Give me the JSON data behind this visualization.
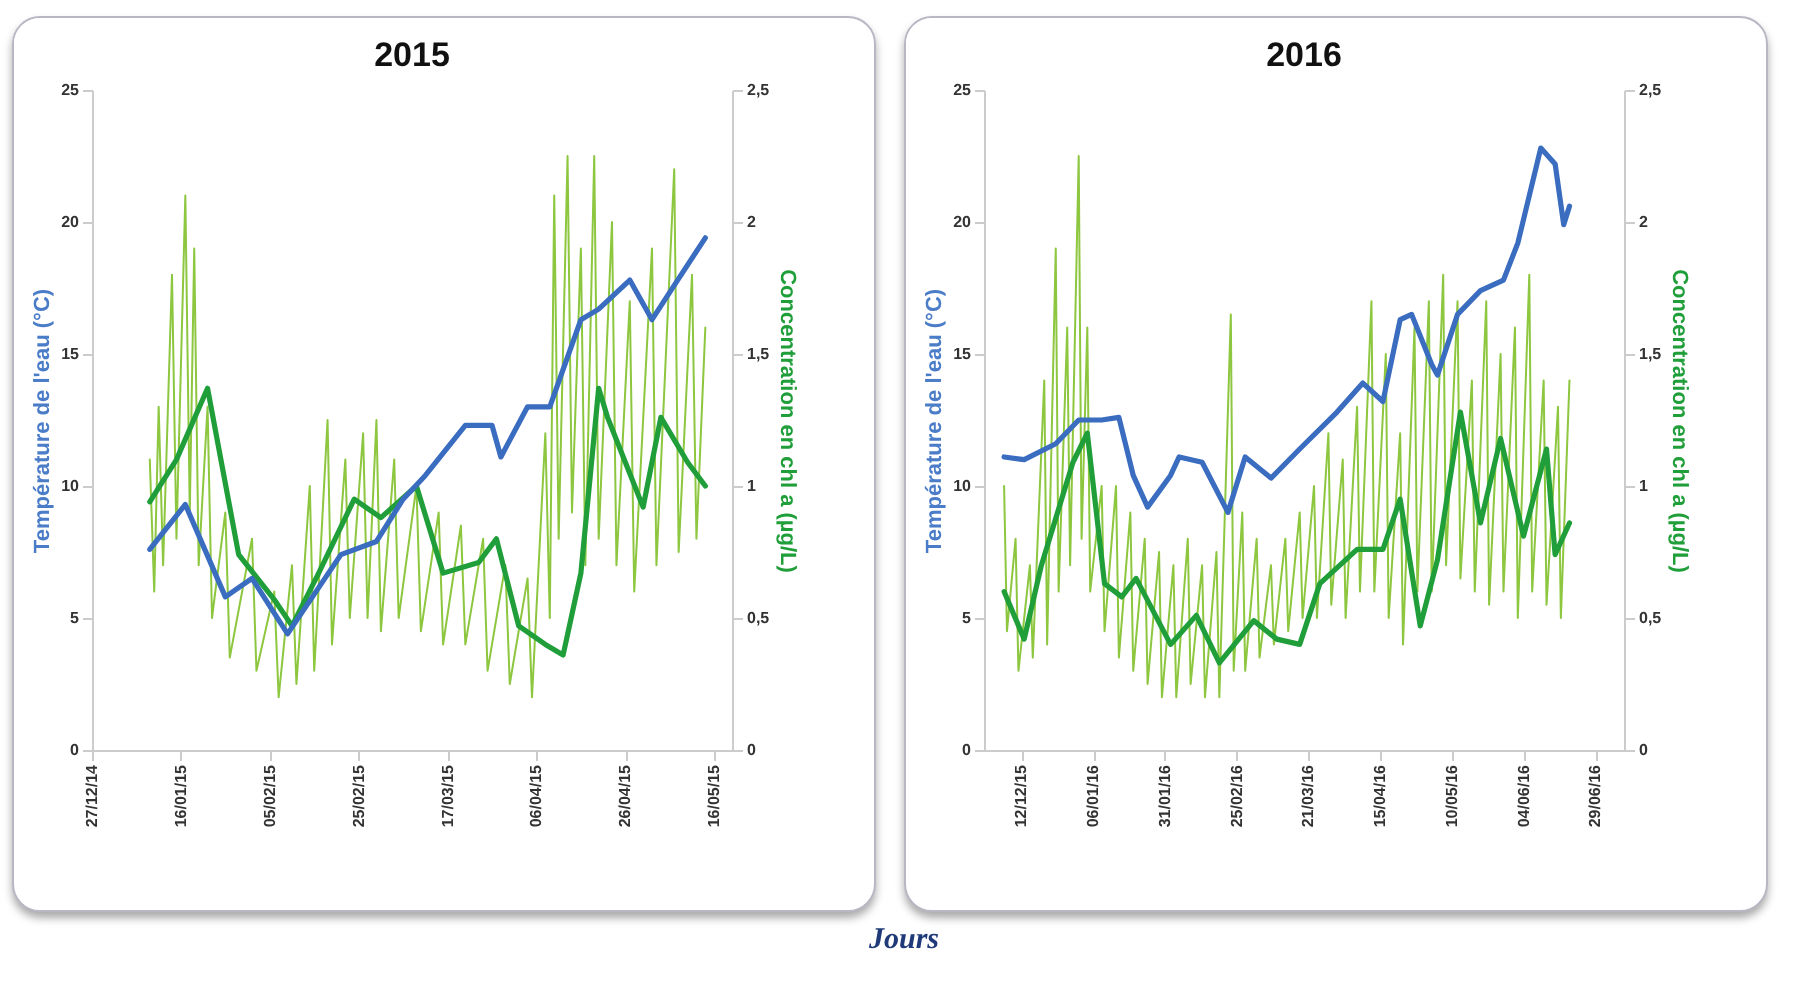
{
  "chart_data": [
    {
      "type": "line",
      "title": "2015",
      "xlabel": "Jours",
      "ylabel": "Température de l'eau (°C)",
      "y2label": "Concentration en chl a (µg/L)",
      "xlim": [
        "2014-12-27",
        "2015-05-20"
      ],
      "xticks": [
        {
          "value": "2014-12-27",
          "label": "27/12/14"
        },
        {
          "value": "2015-01-16",
          "label": "16/01/15"
        },
        {
          "value": "2015-02-05",
          "label": "05/02/15"
        },
        {
          "value": "2015-02-25",
          "label": "25/02/15"
        },
        {
          "value": "2015-03-17",
          "label": "17/03/15"
        },
        {
          "value": "2015-04-06",
          "label": "06/04/15"
        },
        {
          "value": "2015-04-26",
          "label": "26/04/15"
        },
        {
          "value": "2015-05-16",
          "label": "16/05/15"
        }
      ],
      "ylim": [
        0,
        25
      ],
      "yticks": [
        0,
        5,
        10,
        15,
        20,
        25
      ],
      "y2lim": [
        0,
        2.5
      ],
      "y2ticks": [
        0,
        {
          "value": 0.5,
          "label": "0,5"
        },
        1,
        {
          "value": 1.5,
          "label": "1,5"
        },
        2,
        {
          "value": 2.5,
          "label": "2,5"
        }
      ],
      "grid": false,
      "series": [
        {
          "axis": "y2",
          "color": "#8dc63f",
          "x": [
            "2015-01-09",
            "2015-01-10",
            "2015-01-11",
            "2015-01-12",
            "2015-01-14",
            "2015-01-15",
            "2015-01-17",
            "2015-01-18",
            "2015-01-19",
            "2015-01-20",
            "2015-01-22",
            "2015-01-23",
            "2015-01-26",
            "2015-01-27",
            "2015-02-01",
            "2015-02-02",
            "2015-02-06",
            "2015-02-07",
            "2015-02-10",
            "2015-02-11",
            "2015-02-14",
            "2015-02-15",
            "2015-02-18",
            "2015-02-19",
            "2015-02-22",
            "2015-02-23",
            "2015-02-26",
            "2015-02-27",
            "2015-03-01",
            "2015-03-02",
            "2015-03-05",
            "2015-03-06",
            "2015-03-10",
            "2015-03-11",
            "2015-03-15",
            "2015-03-16",
            "2015-03-20",
            "2015-03-21",
            "2015-03-25",
            "2015-03-26",
            "2015-03-30",
            "2015-03-31",
            "2015-04-04",
            "2015-04-05",
            "2015-04-08",
            "2015-04-09",
            "2015-04-10",
            "2015-04-11",
            "2015-04-13",
            "2015-04-14",
            "2015-04-16",
            "2015-04-17",
            "2015-04-19",
            "2015-04-20",
            "2015-04-23",
            "2015-04-24",
            "2015-04-27",
            "2015-04-28",
            "2015-05-02",
            "2015-05-03",
            "2015-05-07",
            "2015-05-08",
            "2015-05-11",
            "2015-05-12",
            "2015-05-14"
          ],
          "values": [
            1.1,
            0.6,
            1.3,
            0.7,
            1.8,
            0.8,
            2.1,
            0.9,
            1.9,
            0.7,
            1.3,
            0.5,
            0.9,
            0.35,
            0.8,
            0.3,
            0.6,
            0.2,
            0.7,
            0.25,
            1.0,
            0.3,
            1.25,
            0.4,
            1.1,
            0.5,
            1.2,
            0.5,
            1.25,
            0.45,
            1.1,
            0.5,
            1.0,
            0.45,
            0.9,
            0.4,
            0.85,
            0.4,
            0.8,
            0.3,
            0.7,
            0.25,
            0.65,
            0.2,
            1.2,
            0.5,
            2.1,
            0.8,
            2.25,
            0.9,
            1.9,
            0.7,
            2.25,
            0.8,
            2.0,
            0.7,
            1.7,
            0.6,
            1.9,
            0.7,
            2.2,
            0.75,
            1.8,
            0.8,
            1.6
          ]
        },
        {
          "axis": "y2",
          "color": "#1f9e3a",
          "x": [
            "2015-01-09",
            "2015-01-15",
            "2015-01-22",
            "2015-01-29",
            "2015-02-06",
            "2015-02-10",
            "2015-02-16",
            "2015-02-24",
            "2015-03-02",
            "2015-03-10",
            "2015-03-16",
            "2015-03-24",
            "2015-03-28",
            "2015-04-02",
            "2015-04-08",
            "2015-04-12",
            "2015-04-16",
            "2015-04-20",
            "2015-04-22",
            "2015-04-26",
            "2015-04-30",
            "2015-05-04",
            "2015-05-10",
            "2015-05-14"
          ],
          "values": [
            0.94,
            1.1,
            1.37,
            0.74,
            0.57,
            0.47,
            0.67,
            0.95,
            0.88,
            1.0,
            0.67,
            0.71,
            0.8,
            0.47,
            0.4,
            0.36,
            0.67,
            1.37,
            1.26,
            1.09,
            0.92,
            1.26,
            1.09,
            1.0
          ]
        },
        {
          "color": "#3a6cc0",
          "x": [
            "2015-01-09",
            "2015-01-17",
            "2015-01-26",
            "2015-02-01",
            "2015-02-09",
            "2015-02-21",
            "2015-03-01",
            "2015-03-07",
            "2015-03-12",
            "2015-03-21",
            "2015-03-27",
            "2015-03-29",
            "2015-04-04",
            "2015-04-09",
            "2015-04-16",
            "2015-04-20",
            "2015-04-27",
            "2015-05-02",
            "2015-05-07",
            "2015-05-14"
          ],
          "values": [
            7.6,
            9.3,
            5.8,
            6.5,
            4.4,
            7.4,
            7.9,
            9.5,
            10.4,
            12.3,
            12.3,
            11.1,
            13,
            13,
            16.3,
            16.7,
            17.8,
            16.3,
            17.6,
            19.4
          ]
        }
      ]
    },
    {
      "type": "line",
      "title": "2016",
      "ylabel": "Température de l'eau (°C)",
      "y2label": "Concentration en chl a (µg/L)",
      "xlim": [
        "2015-11-29",
        "2016-07-09"
      ],
      "xticks": [
        {
          "value": "2015-12-12",
          "label": "12/12/15"
        },
        {
          "value": "2016-01-06",
          "label": "06/01/16"
        },
        {
          "value": "2016-01-31",
          "label": "31/01/16"
        },
        {
          "value": "2016-02-25",
          "label": "25/02/16"
        },
        {
          "value": "2016-03-21",
          "label": "21/03/16"
        },
        {
          "value": "2016-04-15",
          "label": "15/04/16"
        },
        {
          "value": "2016-05-10",
          "label": "10/05/16"
        },
        {
          "value": "2016-06-04",
          "label": "04/06/16"
        },
        {
          "value": "2016-06-29",
          "label": "29/06/16"
        }
      ],
      "ylim": [
        0,
        25
      ],
      "yticks": [
        0,
        5,
        10,
        15,
        20,
        25
      ],
      "y2lim": [
        0,
        2.5
      ],
      "y2ticks": [
        0,
        {
          "value": 0.5,
          "label": "0,5"
        },
        1,
        {
          "value": 1.5,
          "label": "1,5"
        },
        2,
        {
          "value": 2.5,
          "label": "2,5"
        }
      ],
      "grid": false,
      "series": [
        {
          "axis": "y2",
          "color": "#8dc63f",
          "x": [
            "2015-12-06",
            "2015-12-07",
            "2015-12-10",
            "2015-12-11",
            "2015-12-15",
            "2015-12-16",
            "2015-12-20",
            "2015-12-21",
            "2015-12-24",
            "2015-12-25",
            "2015-12-28",
            "2015-12-29",
            "2016-01-01",
            "2016-01-02",
            "2016-01-04",
            "2016-01-05",
            "2016-01-09",
            "2016-01-10",
            "2016-01-14",
            "2016-01-15",
            "2016-01-19",
            "2016-01-20",
            "2016-01-24",
            "2016-01-25",
            "2016-01-29",
            "2016-01-30",
            "2016-02-03",
            "2016-02-04",
            "2016-02-08",
            "2016-02-09",
            "2016-02-13",
            "2016-02-14",
            "2016-02-18",
            "2016-02-19",
            "2016-02-23",
            "2016-02-24",
            "2016-02-27",
            "2016-02-28",
            "2016-03-03",
            "2016-03-04",
            "2016-03-08",
            "2016-03-09",
            "2016-03-13",
            "2016-03-14",
            "2016-03-18",
            "2016-03-19",
            "2016-03-23",
            "2016-03-24",
            "2016-03-28",
            "2016-03-29",
            "2016-04-02",
            "2016-04-03",
            "2016-04-07",
            "2016-04-08",
            "2016-04-12",
            "2016-04-13",
            "2016-04-17",
            "2016-04-18",
            "2016-04-22",
            "2016-04-23",
            "2016-04-27",
            "2016-04-28",
            "2016-05-02",
            "2016-05-03",
            "2016-05-07",
            "2016-05-08",
            "2016-05-12",
            "2016-05-13",
            "2016-05-17",
            "2016-05-18",
            "2016-05-22",
            "2016-05-23",
            "2016-05-27",
            "2016-05-28",
            "2016-06-01",
            "2016-06-02",
            "2016-06-06",
            "2016-06-07",
            "2016-06-11",
            "2016-06-12",
            "2016-06-16",
            "2016-06-17",
            "2016-06-20"
          ],
          "values": [
            1.0,
            0.45,
            0.8,
            0.3,
            0.7,
            0.35,
            1.4,
            0.4,
            1.9,
            0.6,
            1.6,
            0.7,
            2.25,
            0.8,
            1.6,
            0.6,
            1.0,
            0.45,
            1.0,
            0.35,
            0.9,
            0.3,
            0.8,
            0.25,
            0.75,
            0.2,
            0.7,
            0.2,
            0.8,
            0.25,
            0.7,
            0.2,
            0.75,
            0.2,
            1.65,
            0.3,
            0.9,
            0.3,
            0.8,
            0.35,
            0.7,
            0.4,
            0.8,
            0.45,
            0.9,
            0.5,
            1.0,
            0.5,
            1.2,
            0.55,
            1.1,
            0.5,
            1.3,
            0.6,
            1.7,
            0.6,
            1.5,
            0.5,
            1.2,
            0.4,
            1.6,
            0.6,
            1.7,
            0.6,
            1.8,
            0.7,
            1.7,
            0.65,
            1.4,
            0.6,
            1.7,
            0.55,
            1.5,
            0.6,
            1.6,
            0.5,
            1.8,
            0.6,
            1.4,
            0.55,
            1.3,
            0.5,
            1.4
          ]
        },
        {
          "axis": "y2",
          "color": "#1f9e3a",
          "x": [
            "2015-12-06",
            "2015-12-13",
            "2015-12-19",
            "2015-12-30",
            "2016-01-04",
            "2016-01-10",
            "2016-01-16",
            "2016-01-21",
            "2016-02-02",
            "2016-02-11",
            "2016-02-19",
            "2016-03-02",
            "2016-03-10",
            "2016-03-18",
            "2016-03-25",
            "2016-04-07",
            "2016-04-16",
            "2016-04-22",
            "2016-04-29",
            "2016-05-05",
            "2016-05-13",
            "2016-05-20",
            "2016-05-27",
            "2016-06-04",
            "2016-06-12",
            "2016-06-15",
            "2016-06-20"
          ],
          "values": [
            0.6,
            0.42,
            0.7,
            1.09,
            1.2,
            0.63,
            0.58,
            0.65,
            0.4,
            0.51,
            0.33,
            0.49,
            0.42,
            0.4,
            0.63,
            0.76,
            0.76,
            0.95,
            0.47,
            0.72,
            1.28,
            0.86,
            1.18,
            0.81,
            1.14,
            0.74,
            0.86
          ]
        },
        {
          "color": "#3a6cc0",
          "x": [
            "2015-12-06",
            "2015-12-13",
            "2015-12-24",
            "2016-01-01",
            "2016-01-09",
            "2016-01-15",
            "2016-01-20",
            "2016-01-25",
            "2016-02-02",
            "2016-02-05",
            "2016-02-13",
            "2016-02-22",
            "2016-02-28",
            "2016-03-08",
            "2016-03-18",
            "2016-03-31",
            "2016-04-09",
            "2016-04-16",
            "2016-04-22",
            "2016-04-26",
            "2016-05-03",
            "2016-05-05",
            "2016-05-12",
            "2016-05-20",
            "2016-05-28",
            "2016-06-02",
            "2016-06-10",
            "2016-06-15",
            "2016-06-18",
            "2016-06-20"
          ],
          "values": [
            11.1,
            11.0,
            11.6,
            12.5,
            12.5,
            12.6,
            10.4,
            9.2,
            10.4,
            11.1,
            10.9,
            9.0,
            11.1,
            10.3,
            11.4,
            12.8,
            13.9,
            13.2,
            16.3,
            16.5,
            14.6,
            14.2,
            16.5,
            17.4,
            17.8,
            19.2,
            22.8,
            22.2,
            19.9,
            20.6
          ]
        }
      ]
    }
  ]
}
